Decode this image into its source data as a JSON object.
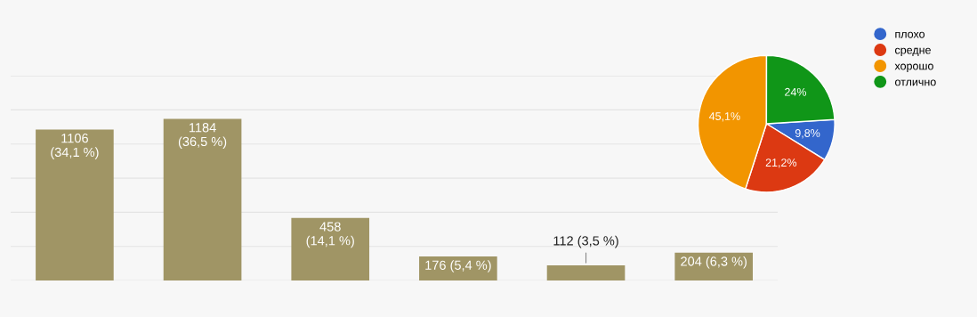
{
  "chart_data": [
    {
      "type": "bar",
      "categories": [
        null,
        null,
        null,
        null,
        null,
        null
      ],
      "values": [
        1106,
        1184,
        458,
        176,
        112,
        204
      ],
      "color": "#a09565",
      "value_labels": [
        "1106\n(34,1 %)",
        "1184\n(36,5 %)",
        "458\n(14,1 %)",
        "176 (5,4 %)",
        "112 (3,5 %)",
        "204 (6,3 %)"
      ],
      "ylim": [
        0,
        1500
      ],
      "yticks": [
        {
          "value": 0,
          "label": null
        },
        {
          "value": 250,
          "label": null
        },
        {
          "value": 500,
          "label": null
        },
        {
          "value": 750,
          "label": null
        },
        {
          "value": 1000,
          "label": null
        },
        {
          "value": 1250,
          "label": null
        },
        {
          "value": 1500,
          "label": null
        }
      ],
      "grid": "y"
    },
    {
      "type": "pie",
      "categories": [
        "плохо",
        "средне",
        "хорошо",
        "отлично"
      ],
      "values": [
        9.8,
        21.2,
        45.1,
        24
      ],
      "colors": [
        "#3366cc",
        "#dc3912",
        "#f29500",
        "#109618"
      ],
      "value_labels": [
        "9,8%",
        "21,2%",
        "45,1%",
        "24%"
      ],
      "legend": "right"
    }
  ]
}
